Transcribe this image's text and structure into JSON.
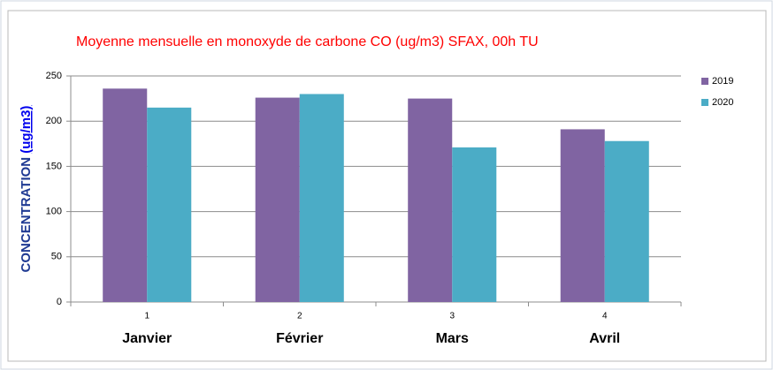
{
  "chart_data": {
    "type": "bar",
    "title": "Moyenne mensuelle en monoxyde de carbone CO (ug/m3)  SFAX, 00h TU",
    "ylabel": "CONCENTRATION",
    "ylabel_unit": "(ug/m3)",
    "categories": [
      "1",
      "2",
      "3",
      "4"
    ],
    "category_names": [
      "Janvier",
      "Février",
      "Mars",
      "Avril"
    ],
    "series": [
      {
        "name": "2019",
        "color": "#8064a2",
        "values": [
          236,
          226,
          225,
          191
        ]
      },
      {
        "name": "2020",
        "color": "#4bacc6",
        "values": [
          215,
          230,
          171,
          178
        ]
      }
    ],
    "ylim": [
      0,
      250
    ],
    "yticks": [
      0,
      50,
      100,
      150,
      200,
      250
    ],
    "grid": true,
    "legend": "right"
  }
}
